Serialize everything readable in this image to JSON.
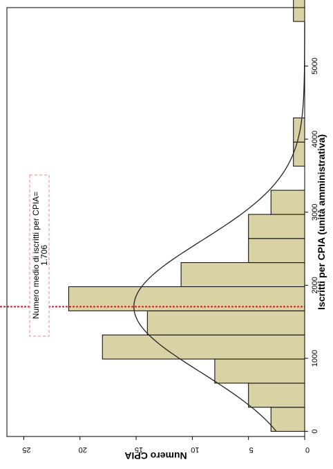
{
  "chart_data": {
    "type": "bar",
    "orientation": "rotated-90",
    "xlabel": "Iscritti per CPIA (unità amministrativa)",
    "ylabel": "Numero CPIA",
    "xlim": [
      -70,
      5800
    ],
    "ylim": [
      0,
      26.5
    ],
    "x_ticks": [
      0,
      1000,
      2000,
      3000,
      4000,
      5000
    ],
    "x_tick_labels": [
      "0",
      "1000",
      "2000",
      "3000",
      "4000",
      "5000"
    ],
    "y_ticks": [
      0,
      5,
      10,
      15,
      20,
      25
    ],
    "y_tick_labels": [
      "0",
      "5",
      "10",
      "15",
      "20",
      "25"
    ],
    "bins": [
      {
        "start": 0,
        "end": 330,
        "count": 3
      },
      {
        "start": 330,
        "end": 660,
        "count": 5
      },
      {
        "start": 660,
        "end": 990,
        "count": 8
      },
      {
        "start": 990,
        "end": 1320,
        "count": 18
      },
      {
        "start": 1320,
        "end": 1650,
        "count": 14
      },
      {
        "start": 1650,
        "end": 1980,
        "count": 21
      },
      {
        "start": 1980,
        "end": 2310,
        "count": 11
      },
      {
        "start": 2310,
        "end": 2640,
        "count": 5
      },
      {
        "start": 2640,
        "end": 2970,
        "count": 5
      },
      {
        "start": 2970,
        "end": 3300,
        "count": 3
      },
      {
        "start": 3630,
        "end": 3960,
        "count": 1
      },
      {
        "start": 3960,
        "end": 4290,
        "count": 1
      },
      {
        "start": 5610,
        "end": 5940,
        "count": 1
      }
    ],
    "normal_curve": {
      "mean": 1706,
      "sd": 900,
      "peak": 15.2
    },
    "mean_line": {
      "value": 1706,
      "color": "#e8151b"
    },
    "annotation": {
      "line1": "Numero medio di iscritti per CPIA=",
      "line2": "1.706"
    },
    "colors": {
      "bar_fill": "#d9d2a4",
      "bar_stroke": "#000000",
      "curve": "#222222",
      "annotation_border": "#f08080"
    }
  }
}
